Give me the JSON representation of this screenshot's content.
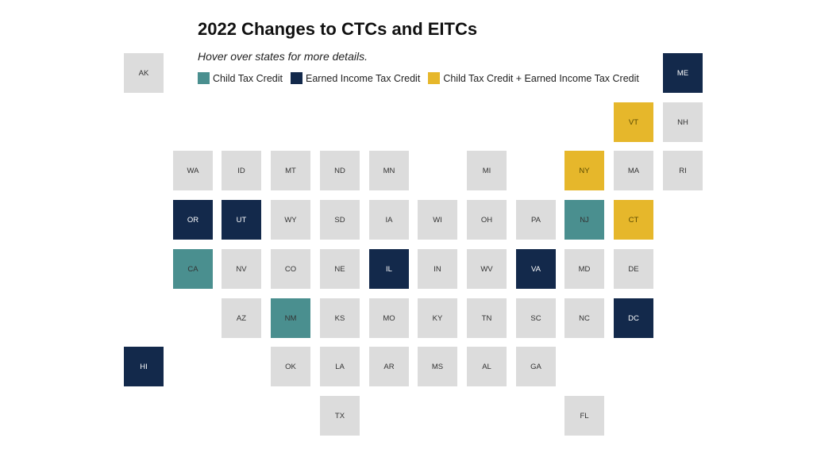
{
  "title": "2022 Changes to CTCs and EITCs",
  "subtitle": "Hover over states for more details.",
  "colors": {
    "none": "#dcdcdc",
    "ctc": "#4a8f8f",
    "eitc": "#13294b",
    "both": "#e6b72b"
  },
  "legend": [
    {
      "key": "ctc",
      "label": "Child Tax Credit"
    },
    {
      "key": "eitc",
      "label": "Earned Income Tax Credit"
    },
    {
      "key": "both",
      "label": "Child Tax Credit + Earned Income Tax Credit"
    }
  ],
  "states": [
    {
      "abbr": "AK",
      "row": 0,
      "col": 0,
      "category": "none"
    },
    {
      "abbr": "ME",
      "row": 0,
      "col": 11,
      "category": "eitc"
    },
    {
      "abbr": "VT",
      "row": 1,
      "col": 10,
      "category": "both"
    },
    {
      "abbr": "NH",
      "row": 1,
      "col": 11,
      "category": "none"
    },
    {
      "abbr": "WA",
      "row": 2,
      "col": 1,
      "category": "none"
    },
    {
      "abbr": "ID",
      "row": 2,
      "col": 2,
      "category": "none"
    },
    {
      "abbr": "MT",
      "row": 2,
      "col": 3,
      "category": "none"
    },
    {
      "abbr": "ND",
      "row": 2,
      "col": 4,
      "category": "none"
    },
    {
      "abbr": "MN",
      "row": 2,
      "col": 5,
      "category": "none"
    },
    {
      "abbr": "MI",
      "row": 2,
      "col": 7,
      "category": "none"
    },
    {
      "abbr": "NY",
      "row": 2,
      "col": 9,
      "category": "both"
    },
    {
      "abbr": "MA",
      "row": 2,
      "col": 10,
      "category": "none"
    },
    {
      "abbr": "RI",
      "row": 2,
      "col": 11,
      "category": "none"
    },
    {
      "abbr": "OR",
      "row": 3,
      "col": 1,
      "category": "eitc"
    },
    {
      "abbr": "UT",
      "row": 3,
      "col": 2,
      "category": "eitc"
    },
    {
      "abbr": "WY",
      "row": 3,
      "col": 3,
      "category": "none"
    },
    {
      "abbr": "SD",
      "row": 3,
      "col": 4,
      "category": "none"
    },
    {
      "abbr": "IA",
      "row": 3,
      "col": 5,
      "category": "none"
    },
    {
      "abbr": "WI",
      "row": 3,
      "col": 6,
      "category": "none"
    },
    {
      "abbr": "OH",
      "row": 3,
      "col": 7,
      "category": "none"
    },
    {
      "abbr": "PA",
      "row": 3,
      "col": 8,
      "category": "none"
    },
    {
      "abbr": "NJ",
      "row": 3,
      "col": 9,
      "category": "ctc"
    },
    {
      "abbr": "CT",
      "row": 3,
      "col": 10,
      "category": "both"
    },
    {
      "abbr": "CA",
      "row": 4,
      "col": 1,
      "category": "ctc"
    },
    {
      "abbr": "NV",
      "row": 4,
      "col": 2,
      "category": "none"
    },
    {
      "abbr": "CO",
      "row": 4,
      "col": 3,
      "category": "none"
    },
    {
      "abbr": "NE",
      "row": 4,
      "col": 4,
      "category": "none"
    },
    {
      "abbr": "IL",
      "row": 4,
      "col": 5,
      "category": "eitc"
    },
    {
      "abbr": "IN",
      "row": 4,
      "col": 6,
      "category": "none"
    },
    {
      "abbr": "WV",
      "row": 4,
      "col": 7,
      "category": "none"
    },
    {
      "abbr": "VA",
      "row": 4,
      "col": 8,
      "category": "eitc"
    },
    {
      "abbr": "MD",
      "row": 4,
      "col": 9,
      "category": "none"
    },
    {
      "abbr": "DE",
      "row": 4,
      "col": 10,
      "category": "none"
    },
    {
      "abbr": "AZ",
      "row": 5,
      "col": 2,
      "category": "none"
    },
    {
      "abbr": "NM",
      "row": 5,
      "col": 3,
      "category": "ctc"
    },
    {
      "abbr": "KS",
      "row": 5,
      "col": 4,
      "category": "none"
    },
    {
      "abbr": "MO",
      "row": 5,
      "col": 5,
      "category": "none"
    },
    {
      "abbr": "KY",
      "row": 5,
      "col": 6,
      "category": "none"
    },
    {
      "abbr": "TN",
      "row": 5,
      "col": 7,
      "category": "none"
    },
    {
      "abbr": "SC",
      "row": 5,
      "col": 8,
      "category": "none"
    },
    {
      "abbr": "NC",
      "row": 5,
      "col": 9,
      "category": "none"
    },
    {
      "abbr": "DC",
      "row": 5,
      "col": 10,
      "category": "eitc"
    },
    {
      "abbr": "HI",
      "row": 6,
      "col": 0,
      "category": "eitc"
    },
    {
      "abbr": "OK",
      "row": 6,
      "col": 3,
      "category": "none"
    },
    {
      "abbr": "LA",
      "row": 6,
      "col": 4,
      "category": "none"
    },
    {
      "abbr": "AR",
      "row": 6,
      "col": 5,
      "category": "none"
    },
    {
      "abbr": "MS",
      "row": 6,
      "col": 6,
      "category": "none"
    },
    {
      "abbr": "AL",
      "row": 6,
      "col": 7,
      "category": "none"
    },
    {
      "abbr": "GA",
      "row": 6,
      "col": 8,
      "category": "none"
    },
    {
      "abbr": "TX",
      "row": 7,
      "col": 4,
      "category": "none"
    },
    {
      "abbr": "FL",
      "row": 7,
      "col": 9,
      "category": "none"
    }
  ]
}
